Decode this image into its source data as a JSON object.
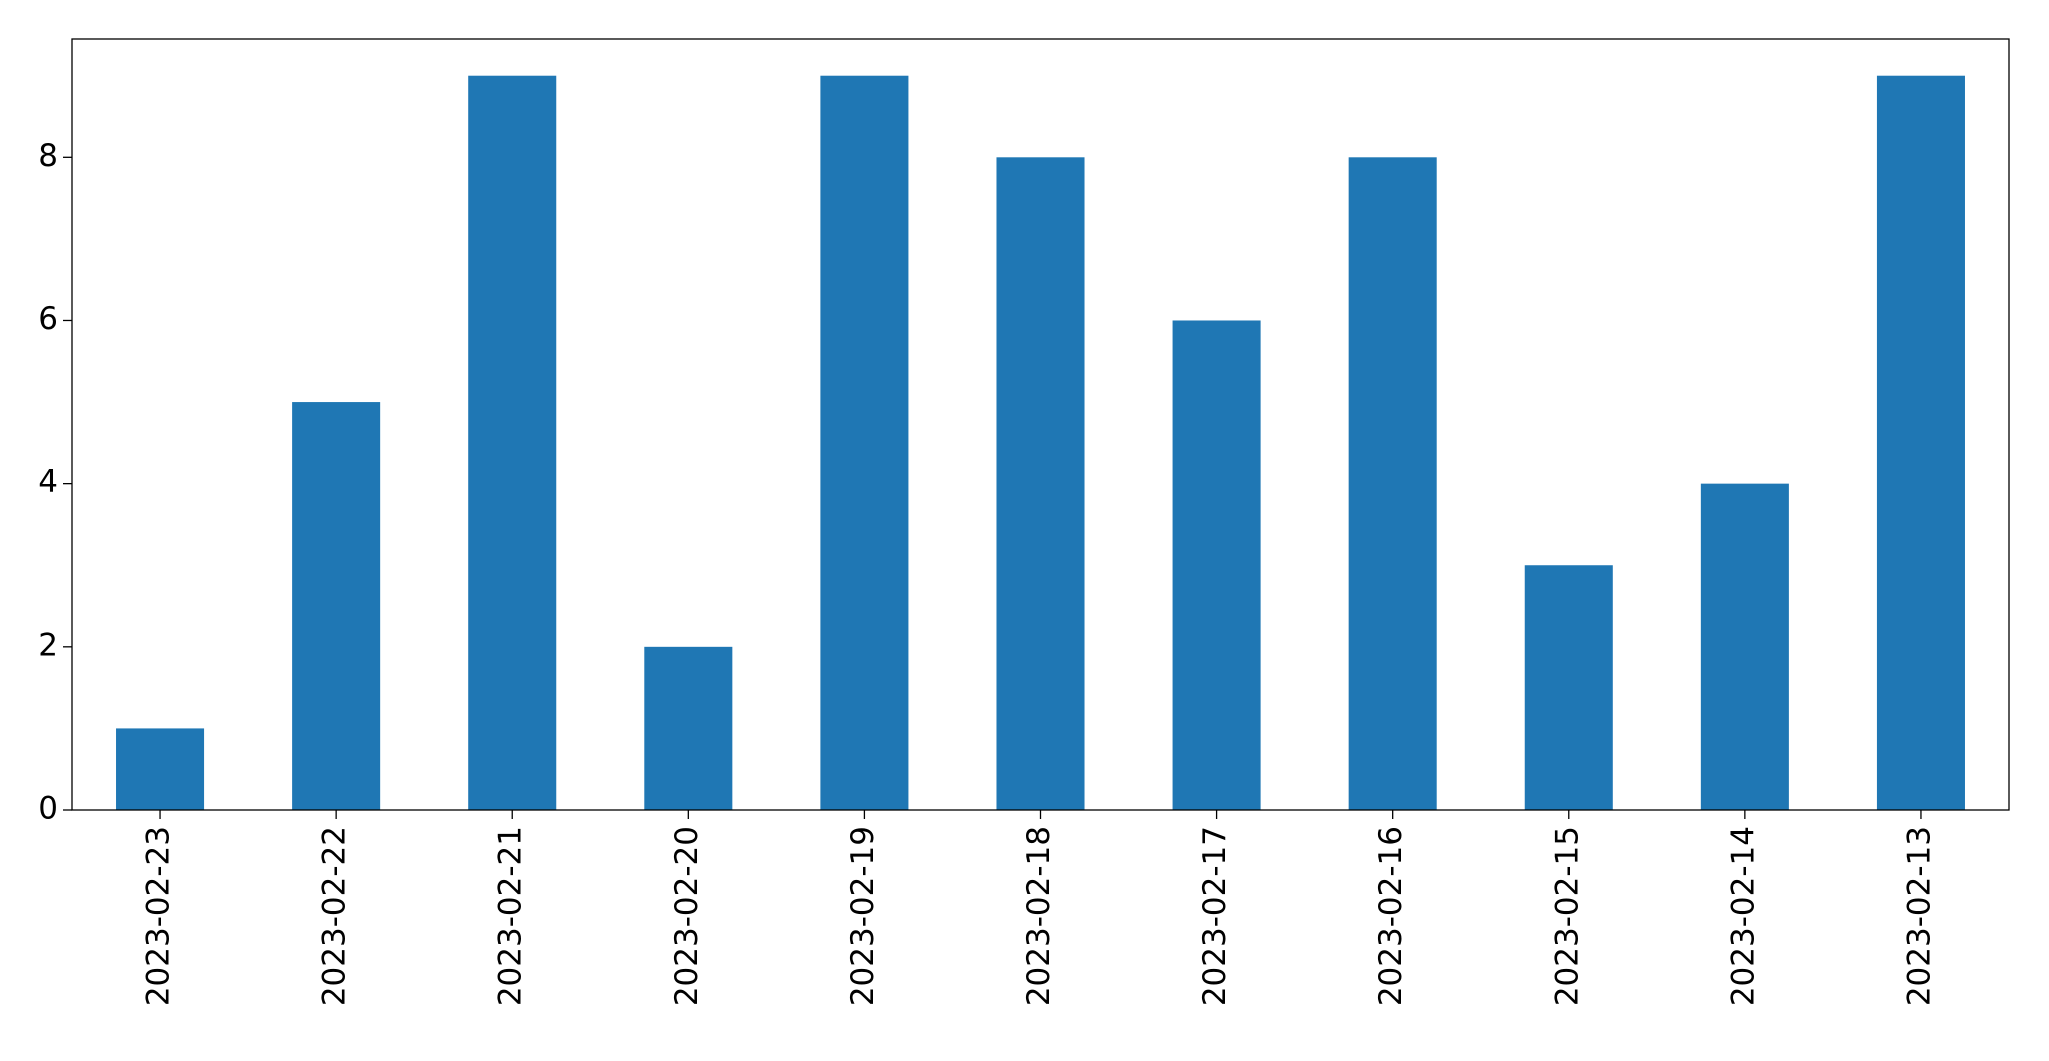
{
  "chart_data": {
    "type": "bar",
    "categories": [
      "2023-02-23",
      "2023-02-22",
      "2023-02-21",
      "2023-02-20",
      "2023-02-19",
      "2023-02-18",
      "2023-02-17",
      "2023-02-16",
      "2023-02-15",
      "2023-02-14",
      "2023-02-13"
    ],
    "values": [
      1,
      5,
      9,
      2,
      9,
      8,
      6,
      8,
      3,
      4,
      9
    ],
    "color": "#1f77b4",
    "ylim": [
      0,
      9.45
    ],
    "yticks": [
      0,
      2,
      4,
      6,
      8
    ],
    "grid": false
  }
}
